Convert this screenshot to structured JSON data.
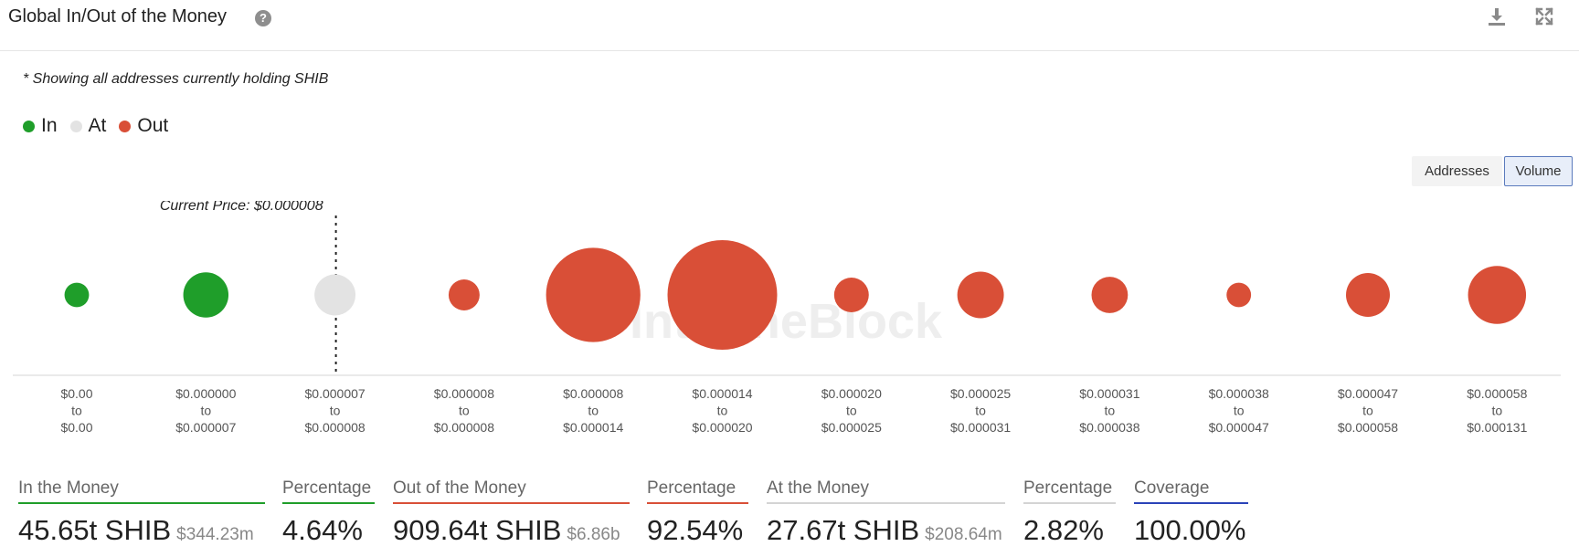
{
  "header": {
    "title": "Global In/Out of the Money",
    "help_icon": "help-icon",
    "help_glyph": "?",
    "download_icon": "download-icon",
    "expand_icon": "expand-icon"
  },
  "note": "* Showing all addresses currently holding SHIB",
  "legend": [
    {
      "label": "In",
      "color": "#1f9e2a"
    },
    {
      "label": "At",
      "color": "#e3e3e3"
    },
    {
      "label": "Out",
      "color": "#d94f37"
    }
  ],
  "toggle": {
    "addresses": "Addresses",
    "volume": "Volume",
    "active": "Volume"
  },
  "chart_data": {
    "type": "bubble",
    "title": "",
    "current_price_label": "Current Price: $0.000008",
    "current_price_after_category": 2,
    "legend_placement": "top-left",
    "grid": false,
    "categories": [
      {
        "from": "$0.00",
        "to": "$0.00",
        "status": "In",
        "relative_volume": 0.05
      },
      {
        "from": "$0.000000",
        "to": "$0.000007",
        "status": "In",
        "relative_volume": 0.17
      },
      {
        "from": "$0.000007",
        "to": "$0.000008",
        "status": "At",
        "relative_volume": 0.14
      },
      {
        "from": "$0.000008",
        "to": "$0.000008",
        "status": "Out",
        "relative_volume": 0.08
      },
      {
        "from": "$0.000008",
        "to": "$0.000014",
        "status": "Out",
        "relative_volume": 0.74
      },
      {
        "from": "$0.000014",
        "to": "$0.000020",
        "status": "Out",
        "relative_volume": 1.0
      },
      {
        "from": "$0.000020",
        "to": "$0.000025",
        "status": "Out",
        "relative_volume": 0.1
      },
      {
        "from": "$0.000025",
        "to": "$0.000031",
        "status": "Out",
        "relative_volume": 0.18
      },
      {
        "from": "$0.000031",
        "to": "$0.000038",
        "status": "Out",
        "relative_volume": 0.11
      },
      {
        "from": "$0.000038",
        "to": "$0.000047",
        "status": "Out",
        "relative_volume": 0.05
      },
      {
        "from": "$0.000047",
        "to": "$0.000058",
        "status": "Out",
        "relative_volume": 0.16
      },
      {
        "from": "$0.000058",
        "to": "$0.000131",
        "status": "Out",
        "relative_volume": 0.28
      }
    ],
    "range_connector": "to",
    "watermark": "IntoTheBlock"
  },
  "stats": {
    "in_money": {
      "label": "In the Money",
      "value": "45.65t SHIB",
      "sub": "$344.23m",
      "color": "#1f9e2a"
    },
    "in_pct": {
      "label": "Percentage",
      "value": "4.64%",
      "color": "#1f9e2a"
    },
    "out_money": {
      "label": "Out of the Money",
      "value": "909.64t SHIB",
      "sub": "$6.86b",
      "color": "#d94f37"
    },
    "out_pct": {
      "label": "Percentage",
      "value": "92.54%",
      "color": "#d94f37"
    },
    "at_money": {
      "label": "At the Money",
      "value": "27.67t SHIB",
      "sub": "$208.64m",
      "color": "#d4d4d4"
    },
    "at_pct": {
      "label": "Percentage",
      "value": "2.82%",
      "color": "#d4d4d4"
    },
    "coverage": {
      "label": "Coverage",
      "value": "100.00%",
      "color": "#2b43b8"
    }
  }
}
